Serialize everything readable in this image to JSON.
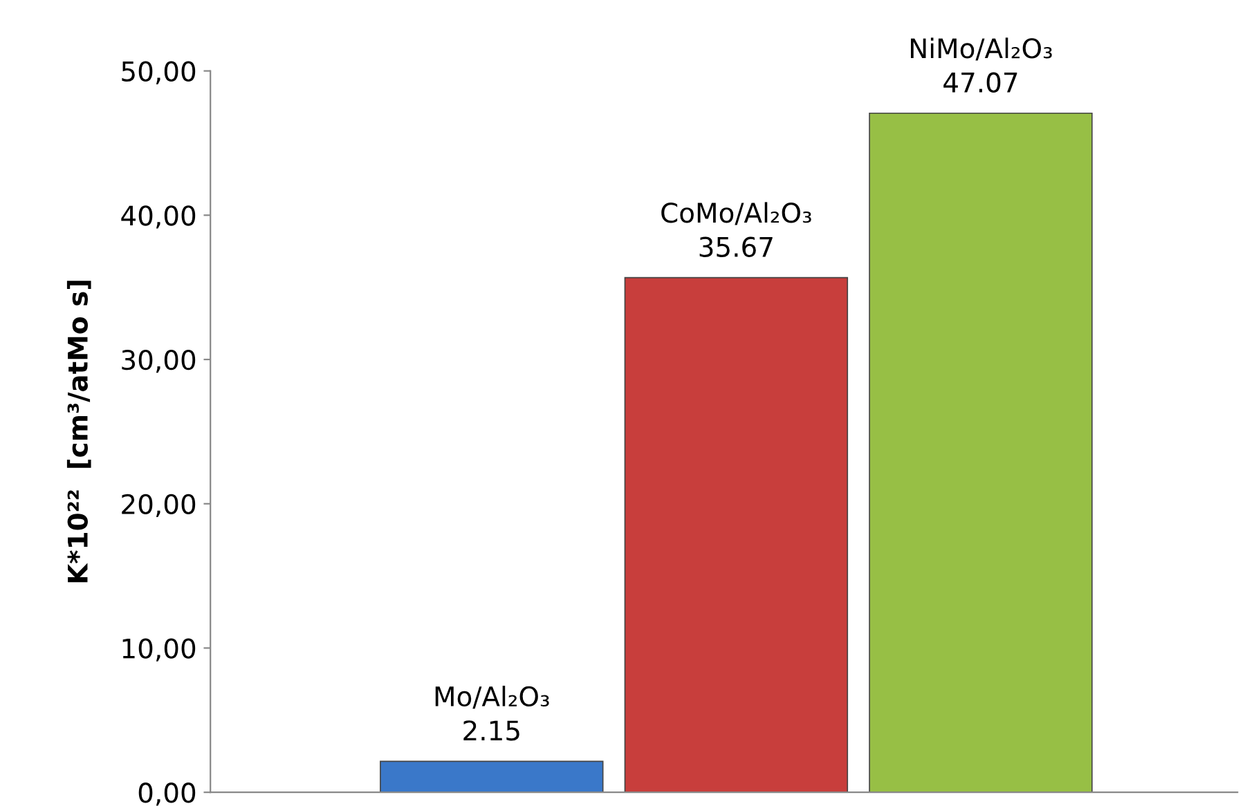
{
  "chart_data": {
    "type": "bar",
    "ylabel": "K*10²²  [cm³/atMo s]",
    "categories": [
      "Mo/Al₂O₃",
      "CoMo/Al₂O₃",
      "NiMo/Al₂O₃"
    ],
    "values": [
      2.15,
      35.67,
      47.07
    ],
    "colors": [
      "#3a78c9",
      "#c83e3c",
      "#97bf45"
    ],
    "ylim": [
      0,
      50
    ],
    "yticks": [
      {
        "value": 0,
        "label": "0,00"
      },
      {
        "value": 10,
        "label": "10,00"
      },
      {
        "value": 20,
        "label": "20,00"
      },
      {
        "value": 30,
        "label": "30,00"
      },
      {
        "value": 40,
        "label": "40,00"
      },
      {
        "value": 50,
        "label": "50,00"
      }
    ],
    "tick_labels": "y",
    "data_labels": true,
    "grid": false,
    "legend": false
  }
}
